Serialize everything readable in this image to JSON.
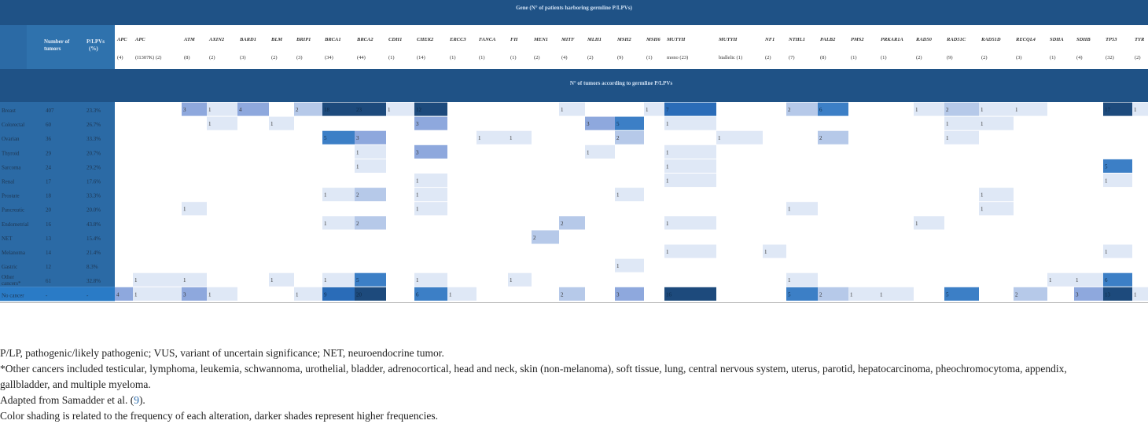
{
  "table": {
    "header_title": "Gene (N° of patients harboring germline P/LPVs)",
    "subheader_title": "N° of tumors according to germline P/LPVs",
    "col_tumors_label": "Number of tumors",
    "col_plp_label": "P/LPVs (%)",
    "genes": [
      "APC",
      "APC",
      "ATM",
      "AXIN2",
      "BARD1",
      "BLM",
      "BRIP1",
      "BRCA1",
      "BRCA2",
      "CDH1",
      "CHEK2",
      "ERCC3",
      "FANCA",
      "FH",
      "MEN1",
      "MITF",
      "MLH1",
      "MSH2",
      "MSH6",
      "MUTYH",
      "MUTYH",
      "NF1",
      "NTHL1",
      "PALB2",
      "PMS2",
      "PRKAR1A",
      "RAD50",
      "RAD51C",
      "RAD51D",
      "RECQL4",
      "SDHA",
      "SDHB",
      "TP53",
      "TYR"
    ],
    "gene_counts": [
      "(4)",
      "(I1307K) (2)",
      "(8)",
      "(2)",
      "(3)",
      "(2)",
      "(3)",
      "(34)",
      "(44)",
      "(1)",
      "(14)",
      "(1)",
      "(1)",
      "(1)",
      "(2)",
      "(4)",
      "(2)",
      "(9)",
      "(1)",
      "mono (23)",
      "biallelic (1)",
      "(2)",
      "(7)",
      "(8)",
      "(1)",
      "(1)",
      "(2)",
      "(9)",
      "(2)",
      "(3)",
      "(1)",
      "(4)",
      "(32)",
      "(2)"
    ],
    "rows": [
      {
        "name": "Breast",
        "tumors": "407",
        "pct": "23.3%",
        "cells": {
          "2": 3,
          "3": 1,
          "4": 4,
          "6": 2,
          "7": 18,
          "8": 23,
          "9": 1,
          "10": 12,
          "15": 1,
          "18": 1,
          "19": 7,
          "22": 2,
          "23": 6,
          "26": 1,
          "27": 2,
          "28": 1,
          "29": 1,
          "32": 17,
          "33": 1
        }
      },
      {
        "name": "Colorectal",
        "tumors": "60",
        "pct": "26.7%",
        "cells": {
          "3": 1,
          "5": 1,
          "10": 3,
          "16": 3,
          "17": 5,
          "19": 1,
          "27": 1,
          "28": 1
        }
      },
      {
        "name": "Ovarian",
        "tumors": "36",
        "pct": "33.3%",
        "cells": {
          "7": 5,
          "8": 3,
          "12": 1,
          "13": 1,
          "17": 2,
          "20": 1,
          "23": 2,
          "27": 1
        }
      },
      {
        "name": "Thyroid",
        "tumors": "29",
        "pct": "20.7%",
        "cells": {
          "8": 1,
          "10": 3,
          "16": 1,
          "19": 1
        }
      },
      {
        "name": "Sarcoma",
        "tumors": "24",
        "pct": "29.2%",
        "cells": {
          "8": 1,
          "19": 1,
          "32": 5
        }
      },
      {
        "name": "Renal",
        "tumors": "17",
        "pct": "17.6%",
        "cells": {
          "10": 1,
          "19": 1,
          "32": 1
        }
      },
      {
        "name": "Prostate",
        "tumors": "18",
        "pct": "33.3%",
        "cells": {
          "7": 1,
          "8": 2,
          "10": 1,
          "17": 1,
          "28": 1
        }
      },
      {
        "name": "Pancreatic",
        "tumors": "20",
        "pct": "20.0%",
        "cells": {
          "2": 1,
          "10": 1,
          "22": 1,
          "28": 1
        }
      },
      {
        "name": "Endometrial",
        "tumors": "16",
        "pct": "43.8%",
        "cells": {
          "7": 1,
          "8": 2,
          "15": 2,
          "19": 1,
          "26": 1
        }
      },
      {
        "name": "NET",
        "tumors": "13",
        "pct": "15.4%",
        "cells": {
          "14": 2
        }
      },
      {
        "name": "Melanoma",
        "tumors": "14",
        "pct": "21.4%",
        "cells": {
          "19": 1,
          "21": 1,
          "32": 1
        }
      },
      {
        "name": "Gastric",
        "tumors": "12",
        "pct": "8.3%",
        "cells": {
          "17": 1
        }
      },
      {
        "name": "Other cancers*",
        "tumors": "61",
        "pct": "32.8%",
        "cells": {
          "1": 1,
          "2": 1,
          "5": 1,
          "7": 1,
          "8": 5,
          "10": 1,
          "13": 1,
          "22": 1,
          "30": 1,
          "31": 1,
          "32": 6
        }
      },
      {
        "name": "No cancer",
        "tumors": "-",
        "pct": "-",
        "cells": {
          "0": 4,
          "1": 1,
          "2": 3,
          "3": 1,
          "6": 1,
          "7": 9,
          "8": 20,
          "10": 6,
          "11": 1,
          "15": 2,
          "17": 3,
          "19": 16,
          "22": 5,
          "23": 2,
          "24": 1,
          "25": 1,
          "27": 5,
          "29": 2,
          "31": 3,
          "32": 13,
          "33": 1
        }
      }
    ]
  },
  "colors": {
    "header": "#1f5286",
    "left_column": "#2b6aa5",
    "no_cancer_left": "#2a7bc6",
    "scale": [
      "#dfe8f6",
      "#b6c9e9",
      "#8ea8dd",
      "#3c7fc6",
      "#2a6cb8",
      "#1d4a7c"
    ]
  },
  "footnotes": {
    "line1": "P/LP, pathogenic/likely pathogenic; VUS, variant of uncertain significance; NET, neuroendocrine tumor.",
    "line2": "*Other cancers included testicular, lymphoma, leukemia, schwannoma, urothelial, bladder, adrenocortical, head and neck, skin (non-melanoma), soft tissue, lung, central nervous system, uterus, parotid, hepatocarcinoma, pheochromocytoma, appendix,",
    "line3": "gallbladder, and multiple myeloma.",
    "line4_prefix": "Adapted from Samadder et al. (",
    "line4_ref": "9",
    "line4_suffix": ").",
    "line5": "Color shading is related to the frequency of each alteration, darker shades represent higher frequencies."
  }
}
